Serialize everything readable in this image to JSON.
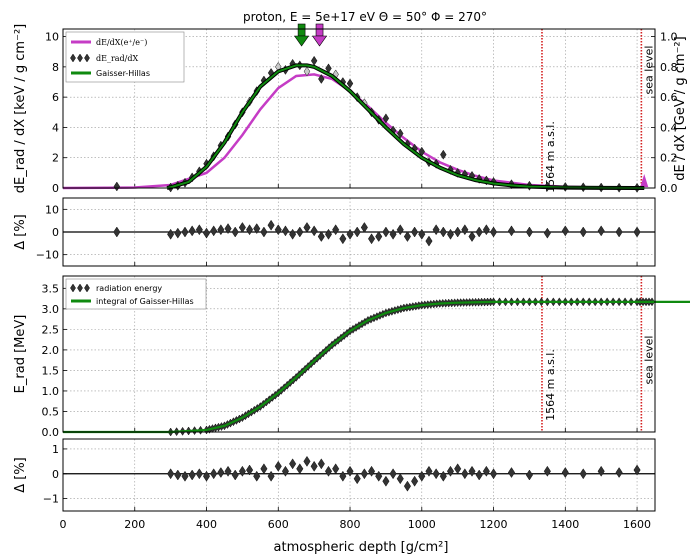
{
  "title": "proton, E = 5e+17 eV Θ = 50° Φ = 270°",
  "xlabel": "atmospheric depth [g/cm²]",
  "x_ticks": [
    "0",
    "200",
    "400",
    "600",
    "800",
    "1000",
    "1200",
    "1400",
    "1600"
  ],
  "annotations": {
    "site": "1564 m a.s.l.",
    "sea": "sea level"
  },
  "colors": {
    "magenta": "#c53cc5",
    "green": "#0f8a0f",
    "diamond": "#333333",
    "marker": "#c8c8c8",
    "red": "#d42020"
  },
  "chart_data": [
    {
      "type": "line",
      "panel": "dEdX",
      "ylabel_left": "dE_rad / dX [keV / g cm⁻²]",
      "ylabel_right": "dE / dX [GeV / g cm⁻²]",
      "xlim": [
        0,
        1650
      ],
      "ylim": [
        0,
        10.5
      ],
      "ylim_right": [
        0,
        1.05
      ],
      "yticks_left": [
        "0",
        "2",
        "4",
        "6",
        "8",
        "10"
      ],
      "yticks_right": [
        "0.0",
        "0.2",
        "0.4",
        "0.6",
        "0.8",
        "1.0"
      ],
      "legend": [
        "dE/dX(e⁺/e⁻)",
        "dE_rad/dX",
        "Gaisser-Hillas"
      ],
      "legend_position": "top-left",
      "series": [
        {
          "name": "dE/dX(e⁺/e⁻)",
          "axis": "right",
          "x": [
            0,
            200,
            300,
            400,
            450,
            500,
            550,
            600,
            650,
            700,
            750,
            800,
            850,
            900,
            950,
            1000,
            1050,
            1100,
            1150,
            1200,
            1300,
            1400,
            1500,
            1600
          ],
          "values": [
            0,
            0.003,
            0.02,
            0.1,
            0.2,
            0.35,
            0.52,
            0.66,
            0.74,
            0.75,
            0.72,
            0.64,
            0.54,
            0.43,
            0.33,
            0.24,
            0.17,
            0.12,
            0.08,
            0.05,
            0.02,
            0.008,
            0.003,
            0.001
          ]
        },
        {
          "name": "Gaisser-Hillas",
          "axis": "left",
          "x": [
            290,
            300,
            350,
            400,
            450,
            500,
            550,
            600,
            650,
            680,
            700,
            750,
            800,
            850,
            900,
            950,
            1000,
            1050,
            1100,
            1150,
            1200,
            1250,
            1300,
            1400,
            1500,
            1600,
            1620
          ],
          "values": [
            0,
            0.05,
            0.4,
            1.4,
            3.0,
            5.0,
            6.7,
            7.7,
            8.1,
            8.1,
            8.0,
            7.4,
            6.4,
            5.2,
            4.0,
            2.9,
            2.0,
            1.35,
            0.85,
            0.52,
            0.3,
            0.17,
            0.09,
            0.025,
            0.006,
            0.001,
            0
          ]
        },
        {
          "name": "dE_rad/dX",
          "axis": "left",
          "type": "scatter",
          "x": [
            150,
            300,
            320,
            340,
            360,
            380,
            400,
            420,
            440,
            460,
            480,
            500,
            520,
            540,
            560,
            580,
            600,
            620,
            640,
            660,
            680,
            700,
            720,
            740,
            760,
            780,
            800,
            820,
            840,
            860,
            880,
            900,
            920,
            940,
            960,
            980,
            1000,
            1020,
            1040,
            1060,
            1080,
            1100,
            1120,
            1140,
            1160,
            1180,
            1200,
            1250,
            1300,
            1350,
            1400,
            1450,
            1500,
            1550,
            1600
          ],
          "values": [
            0.1,
            0.03,
            0.15,
            0.35,
            0.7,
            1.1,
            1.6,
            2.1,
            2.8,
            3.4,
            4.2,
            5.0,
            5.7,
            6.4,
            7.1,
            7.6,
            8.0,
            7.8,
            8.2,
            8.1,
            7.7,
            8.4,
            7.2,
            7.9,
            7.5,
            7.0,
            6.9,
            6.0,
            5.6,
            5.0,
            4.5,
            4.6,
            3.8,
            3.6,
            2.9,
            2.6,
            2.4,
            1.7,
            1.6,
            2.2,
            1.2,
            1.0,
            0.9,
            0.8,
            0.6,
            0.5,
            0.4,
            0.25,
            0.15,
            0.1,
            0.07,
            0.05,
            0.03,
            0.02,
            0.01
          ]
        }
      ],
      "markers": [
        {
          "color": "green",
          "x": 665
        },
        {
          "color": "magenta",
          "x": 715
        }
      ],
      "vlines": [
        {
          "label": "1564 m a.s.l.",
          "x": 1335
        },
        {
          "label": "sea level",
          "x": 1612
        }
      ]
    },
    {
      "type": "scatter",
      "panel": "residual-1",
      "ylabel": "Δ [%]",
      "xlim": [
        0,
        1650
      ],
      "ylim": [
        -15,
        15
      ],
      "yticks": [
        "−10",
        "0",
        "10"
      ],
      "x": [
        150,
        300,
        320,
        340,
        360,
        380,
        400,
        420,
        440,
        460,
        480,
        500,
        520,
        540,
        560,
        580,
        600,
        620,
        640,
        660,
        680,
        700,
        720,
        740,
        760,
        780,
        800,
        820,
        840,
        860,
        880,
        900,
        920,
        940,
        960,
        980,
        1000,
        1020,
        1040,
        1060,
        1080,
        1100,
        1120,
        1140,
        1160,
        1180,
        1200,
        1250,
        1300,
        1350,
        1400,
        1450,
        1500,
        1550,
        1600
      ],
      "values": [
        0,
        -1,
        -0.5,
        0,
        0.5,
        1,
        -0.5,
        0.5,
        1,
        1.5,
        0,
        2,
        1,
        1.5,
        0,
        3,
        1,
        0.5,
        -1,
        0,
        2,
        0.5,
        -2,
        -1,
        1,
        -3,
        -1,
        0,
        2,
        -3,
        -2,
        0,
        -1,
        1,
        -2,
        0,
        -1,
        -4,
        1,
        0,
        -1,
        0,
        1,
        -2,
        0,
        1,
        0,
        0.5,
        0,
        -0.5,
        0.5,
        0,
        0.5,
        0,
        0
      ]
    },
    {
      "type": "line",
      "panel": "cumulative",
      "ylabel": "E_rad [MeV]",
      "xlim": [
        0,
        1650
      ],
      "ylim": [
        0,
        3.8
      ],
      "yticks": [
        "0.0",
        "0.5",
        "1.0",
        "1.5",
        "2.0",
        "2.5",
        "3.0",
        "3.5"
      ],
      "legend": [
        "radiation energy",
        "integral of Gaisser-Hillas"
      ],
      "legend_position": "top-left",
      "series": [
        {
          "name": "integral of Gaisser-Hillas",
          "x": [
            0,
            300,
            400,
            450,
            500,
            550,
            600,
            650,
            700,
            750,
            800,
            850,
            900,
            950,
            1000,
            1050,
            1100,
            1150,
            1200,
            1300,
            1400,
            1500,
            1600,
            1650
          ],
          "values": [
            0,
            0,
            0.05,
            0.15,
            0.35,
            0.62,
            0.95,
            1.33,
            1.73,
            2.12,
            2.46,
            2.72,
            2.9,
            3.02,
            3.09,
            3.13,
            3.15,
            3.16,
            3.17,
            3.17,
            3.17,
            3.17,
            3.17,
            3.17
          ]
        },
        {
          "name": "radiation energy",
          "type": "scatter",
          "x": [
            0,
            300,
            400,
            450,
            500,
            550,
            600,
            650,
            700,
            750,
            800,
            850,
            900,
            950,
            1000,
            1050,
            1100,
            1150,
            1200,
            1300,
            1400,
            1500,
            1600,
            1650
          ],
          "values": [
            0,
            0,
            0.05,
            0.15,
            0.35,
            0.62,
            0.95,
            1.33,
            1.73,
            2.12,
            2.46,
            2.72,
            2.9,
            3.02,
            3.09,
            3.13,
            3.15,
            3.16,
            3.17,
            3.17,
            3.17,
            3.17,
            3.17,
            3.17
          ]
        }
      ],
      "vlines": [
        {
          "label": "1564 m a.s.l.",
          "x": 1335
        },
        {
          "label": "sea level",
          "x": 1612
        }
      ]
    },
    {
      "type": "scatter",
      "panel": "residual-2",
      "ylabel": "Δ [%]",
      "xlim": [
        0,
        1650
      ],
      "ylim": [
        -1.5,
        1.4
      ],
      "yticks": [
        "−1",
        "0",
        "1"
      ],
      "x": [
        300,
        320,
        340,
        360,
        380,
        400,
        420,
        440,
        460,
        480,
        500,
        520,
        540,
        560,
        580,
        600,
        620,
        640,
        660,
        680,
        700,
        720,
        740,
        760,
        780,
        800,
        820,
        840,
        860,
        880,
        900,
        920,
        940,
        960,
        980,
        1000,
        1020,
        1040,
        1060,
        1080,
        1100,
        1120,
        1140,
        1160,
        1180,
        1200,
        1250,
        1300,
        1350,
        1400,
        1450,
        1500,
        1550,
        1600
      ],
      "values": [
        0,
        -0.05,
        -0.1,
        -0.05,
        0,
        -0.1,
        0,
        0.05,
        0.1,
        -0.05,
        0.1,
        0.15,
        -0.1,
        0.2,
        -0.1,
        0.3,
        0.1,
        0.4,
        0.2,
        0.5,
        0.3,
        0.4,
        0.1,
        0.2,
        -0.1,
        0.1,
        -0.2,
        0,
        0.1,
        -0.1,
        -0.3,
        0,
        -0.2,
        -0.5,
        -0.3,
        -0.1,
        0.1,
        0,
        -0.1,
        0.1,
        0.2,
        0,
        0.1,
        -0.05,
        0.1,
        0,
        0.05,
        -0.05,
        0.1,
        0.05,
        0,
        0.1,
        0.05,
        0.15
      ]
    }
  ]
}
